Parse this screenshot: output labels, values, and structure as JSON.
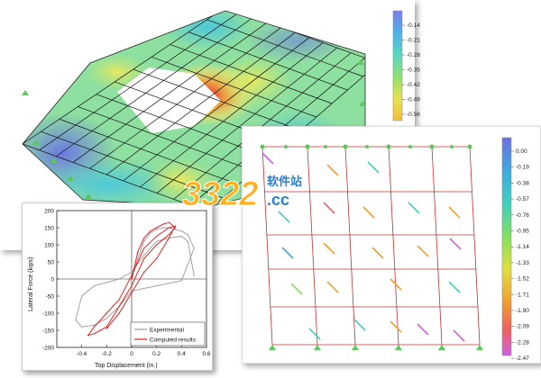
{
  "slab_colorbar": {
    "ticks": [
      "-0.14",
      "-0.21",
      "-0.28",
      "-0.35",
      "-0.42",
      "-0.49",
      "-0.56"
    ]
  },
  "wall_colorbar": {
    "ticks": [
      "0.00",
      "-0.19",
      "-0.38",
      "-0.57",
      "-0.76",
      "-0.95",
      "-1.14",
      "-1.33",
      "-1.52",
      "-1.71",
      "-1.90",
      "-2.09",
      "-2.28",
      "-2.47"
    ]
  },
  "watermark": {
    "logo_text": "3322.cc",
    "site_name": "软件站"
  },
  "chart_data": {
    "type": "line",
    "xlabel": "Top Displacement (in.)",
    "ylabel": "Lateral Force (kips)",
    "xlim": [
      -0.6,
      0.6
    ],
    "ylim": [
      -200,
      200
    ],
    "xticks": [
      "-0.4",
      "-0.2",
      "0",
      "0.2",
      "0.4",
      "0.6"
    ],
    "yticks": [
      "200",
      "150",
      "100",
      "50",
      "0",
      "-50",
      "-100",
      "-150",
      "-200"
    ],
    "legend_position": "bottom-right",
    "series": [
      {
        "name": "Experimental",
        "color": "#999999",
        "x": [
          0,
          0.05,
          0.1,
          0.15,
          0.2,
          0.25,
          0.3,
          0.35,
          0.4,
          0.45,
          0.5,
          0.4,
          0.2,
          0,
          -0.1,
          -0.2,
          -0.3,
          -0.4,
          -0.45,
          -0.4,
          -0.3,
          -0.2,
          -0.1,
          0,
          0.1,
          0.2,
          0.3,
          0.4,
          0.45,
          0.5
        ],
        "y": [
          0,
          60,
          110,
          135,
          145,
          150,
          150,
          145,
          140,
          130,
          90,
          -5,
          -20,
          -35,
          -80,
          -115,
          -135,
          -140,
          -120,
          -50,
          -20,
          -10,
          0,
          20,
          70,
          110,
          120,
          125,
          110,
          10
        ]
      },
      {
        "name": "Computed results",
        "color": "#dd2222",
        "x": [
          0,
          0.05,
          0.1,
          0.15,
          0.2,
          0.25,
          0.3,
          0.35,
          0.3,
          0.2,
          0.1,
          0,
          -0.1,
          -0.15,
          -0.2,
          -0.25,
          -0.3,
          -0.35,
          -0.3,
          -0.2,
          -0.1,
          0,
          0.1,
          0.2,
          0.3,
          0.35,
          0.3,
          0.2,
          0.1,
          0,
          -0.1,
          -0.2
        ],
        "y": [
          0,
          80,
          120,
          140,
          150,
          160,
          165,
          150,
          130,
          100,
          60,
          -20,
          -80,
          -110,
          -140,
          -150,
          -160,
          -165,
          -140,
          -100,
          -60,
          10,
          90,
          125,
          150,
          155,
          120,
          60,
          20,
          -40,
          -100,
          -145
        ]
      }
    ]
  }
}
